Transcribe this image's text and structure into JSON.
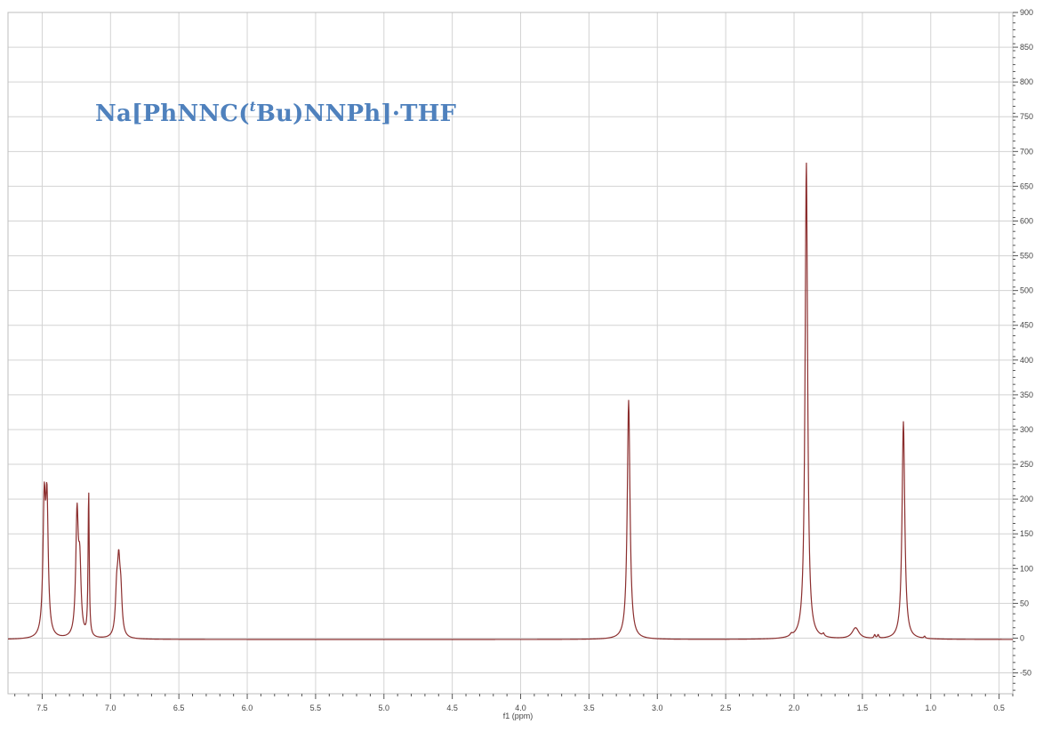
{
  "title": {
    "prefix": "Na[PhNNC(",
    "superscript": "t",
    "suffix": "Bu)NNPh]·THF",
    "color": "#4f81bd"
  },
  "chart_data": {
    "type": "line",
    "title": "Na[PhNNC(tBu)NNPh]·THF",
    "xlabel": "f1 (ppm)",
    "ylabel": "",
    "x_reversed": true,
    "xlim": [
      7.75,
      0.4
    ],
    "ylim": [
      -80,
      900
    ],
    "grid": true,
    "y_axis_side": "right",
    "line_color": "#8b2e2e",
    "x_ticks": [
      7.5,
      7.0,
      6.5,
      6.0,
      5.5,
      5.0,
      4.5,
      4.0,
      3.5,
      3.0,
      2.5,
      2.0,
      1.5,
      1.0,
      0.5
    ],
    "x_tick_labels": [
      "7.5",
      "7.0",
      "6.5",
      "6.0",
      "5.5",
      "5.0",
      "4.5",
      "4.0",
      "3.5",
      "3.0",
      "2.5",
      "2.0",
      "1.5",
      "1.0",
      "0.5"
    ],
    "y_ticks": [
      -50,
      0,
      50,
      100,
      150,
      200,
      250,
      300,
      350,
      400,
      450,
      500,
      550,
      600,
      650,
      700,
      750,
      800,
      850,
      900
    ],
    "y_tick_labels": [
      "-50",
      "0",
      "50",
      "100",
      "150",
      "200",
      "250",
      "300",
      "350",
      "400",
      "450",
      "500",
      "550",
      "600",
      "650",
      "700",
      "750",
      "800",
      "850",
      "900"
    ],
    "baseline": -2,
    "peaks": [
      {
        "ppm": 7.485,
        "height": 182,
        "width": 0.011
      },
      {
        "ppm": 7.465,
        "height": 182,
        "width": 0.011
      },
      {
        "ppm": 7.245,
        "height": 172,
        "width": 0.011
      },
      {
        "ppm": 7.225,
        "height": 95,
        "width": 0.011
      },
      {
        "ppm": 7.16,
        "height": 210,
        "width": 0.005
      },
      {
        "ppm": 6.955,
        "height": 58,
        "width": 0.011
      },
      {
        "ppm": 6.94,
        "height": 90,
        "width": 0.011
      },
      {
        "ppm": 6.925,
        "height": 55,
        "width": 0.011
      },
      {
        "ppm": 3.21,
        "height": 344,
        "width": 0.012
      },
      {
        "ppm": 1.91,
        "height": 686,
        "width": 0.011
      },
      {
        "ppm": 1.55,
        "height": 16,
        "width": 0.03
      },
      {
        "ppm": 2.02,
        "height": 3,
        "width": 0.01
      },
      {
        "ppm": 1.785,
        "height": 4,
        "width": 0.008
      },
      {
        "ppm": 1.41,
        "height": 5,
        "width": 0.006
      },
      {
        "ppm": 1.385,
        "height": 5,
        "width": 0.006
      },
      {
        "ppm": 1.2,
        "height": 313,
        "width": 0.012
      },
      {
        "ppm": 1.045,
        "height": 3,
        "width": 0.006
      }
    ]
  }
}
